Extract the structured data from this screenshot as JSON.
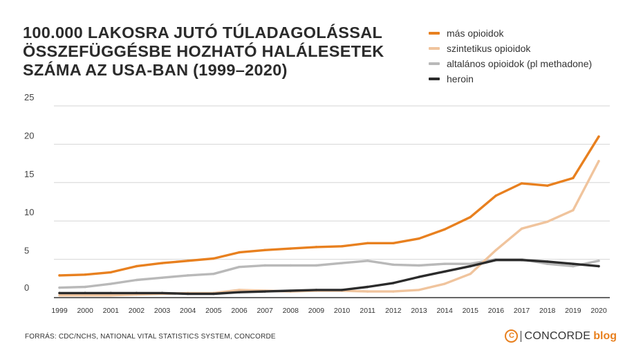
{
  "chart_data": {
    "type": "line",
    "title_lines": [
      "100.000 LAKOSRA JUTÓ TÚLADAGOLÁSSAL",
      "ÖSSZEFÜGGÉSBE HOZHATÓ HALÁLESETEK",
      "SZÁMA AZ USA-BAN (1999–2020)"
    ],
    "xlabel": "",
    "ylabel": "",
    "x": [
      "1999",
      "2000",
      "2001",
      "2002",
      "2003",
      "2004",
      "2005",
      "2006",
      "2007",
      "2008",
      "2009",
      "2010",
      "2011",
      "2012",
      "2013",
      "2014",
      "2015",
      "2016",
      "2017",
      "2018",
      "2019",
      "2020"
    ],
    "yticks": [
      "0",
      "5",
      "10",
      "15",
      "20",
      "25"
    ],
    "ylim": [
      0,
      25
    ],
    "grid": true,
    "legend_position": "top-right",
    "series": [
      {
        "name": "más opioidok",
        "color": "#e8801f",
        "values": [
          2.9,
          3.0,
          3.3,
          4.1,
          4.5,
          4.8,
          5.1,
          5.9,
          6.2,
          6.4,
          6.6,
          6.7,
          7.1,
          7.1,
          7.7,
          8.9,
          10.5,
          13.3,
          14.9,
          14.6,
          15.6,
          21.0
        ]
      },
      {
        "name": "szintetikus opioidok",
        "color": "#f0c49d",
        "values": [
          0.3,
          0.3,
          0.3,
          0.4,
          0.5,
          0.6,
          0.6,
          1.0,
          0.9,
          0.8,
          0.9,
          0.9,
          0.8,
          0.8,
          1.0,
          1.8,
          3.1,
          6.2,
          9.0,
          9.9,
          11.4,
          17.8
        ]
      },
      {
        "name": "altalános opioidok (pl methadone)",
        "color": "#b9b9b9",
        "values": [
          1.3,
          1.4,
          1.8,
          2.3,
          2.6,
          2.9,
          3.1,
          4.0,
          4.2,
          4.2,
          4.2,
          4.5,
          4.8,
          4.3,
          4.2,
          4.4,
          4.4,
          5.0,
          5.0,
          4.4,
          4.1,
          4.8
        ]
      },
      {
        "name": "heroin",
        "color": "#2b2b2b",
        "values": [
          0.6,
          0.6,
          0.6,
          0.6,
          0.6,
          0.5,
          0.5,
          0.7,
          0.8,
          0.9,
          1.0,
          1.0,
          1.4,
          1.9,
          2.7,
          3.4,
          4.1,
          4.9,
          4.9,
          4.7,
          4.4,
          4.1
        ]
      }
    ],
    "source": "FORRÁS: CDC/NCHS, NATIONAL VITAL STATISTICS SYSTEM, CONCORDE"
  },
  "brand": {
    "icon_glyph": "C",
    "name": "CONCORDE",
    "suffix": "blog",
    "accent_color": "#e8801f"
  }
}
